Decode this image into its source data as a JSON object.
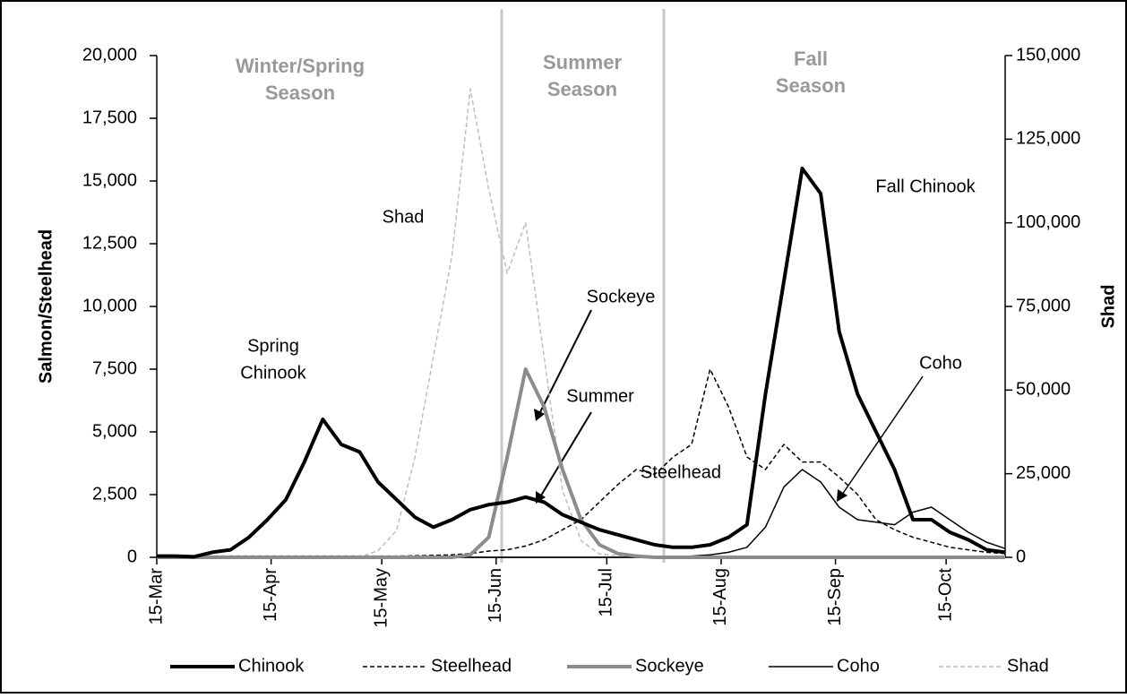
{
  "chart_data": {
    "type": "line",
    "x": [
      "15-Mar",
      "20-Mar",
      "25-Mar",
      "30-Mar",
      "4-Apr",
      "9-Apr",
      "14-Apr",
      "19-Apr",
      "24-Apr",
      "29-Apr",
      "4-May",
      "9-May",
      "14-May",
      "19-May",
      "24-May",
      "29-May",
      "3-Jun",
      "8-Jun",
      "13-Jun",
      "18-Jun",
      "23-Jun",
      "28-Jun",
      "3-Jul",
      "8-Jul",
      "13-Jul",
      "18-Jul",
      "23-Jul",
      "28-Jul",
      "2-Aug",
      "7-Aug",
      "12-Aug",
      "17-Aug",
      "22-Aug",
      "27-Aug",
      "1-Sep",
      "6-Sep",
      "11-Sep",
      "16-Sep",
      "21-Sep",
      "26-Sep",
      "1-Oct",
      "6-Oct",
      "11-Oct",
      "16-Oct",
      "21-Oct",
      "26-Oct",
      "31-Oct"
    ],
    "xlim": [
      "15-Mar",
      "31-Oct"
    ],
    "xticks": [
      "15-Mar",
      "15-Apr",
      "15-May",
      "15-Jun",
      "15-Jul",
      "15-Aug",
      "15-Sep",
      "15-Oct"
    ],
    "ylabel": "Salmon/Steelhead",
    "y2label": "Shad",
    "ylim": [
      0,
      20000
    ],
    "yticks": [
      0,
      {
        "value": 2500,
        "label": "2,500"
      },
      {
        "value": 5000,
        "label": "5,000"
      },
      {
        "value": 7500,
        "label": "7,500"
      },
      {
        "value": 10000,
        "label": "10,000"
      },
      {
        "value": 12500,
        "label": "12,500"
      },
      {
        "value": 15000,
        "label": "15,000"
      },
      {
        "value": 17500,
        "label": "17,500"
      },
      {
        "value": 20000,
        "label": "20,000"
      }
    ],
    "y2lim": [
      0,
      150000
    ],
    "y2ticks": [
      0,
      {
        "value": 25000,
        "label": "25,000"
      },
      {
        "value": 50000,
        "label": "50,000"
      },
      {
        "value": 75000,
        "label": "75,000"
      },
      {
        "value": 100000,
        "label": "100,000"
      },
      {
        "value": 125000,
        "label": "125,000"
      },
      {
        "value": 150000,
        "label": "150,000"
      }
    ],
    "season_labels": [
      [
        "Winter/Spring",
        "Season"
      ],
      [
        "Summer",
        "Season"
      ],
      [
        "Fall",
        "Season"
      ]
    ],
    "annotations": [
      "Shad",
      "Spring",
      "Chinook",
      "Sockeye",
      "Summer",
      "Steelhead",
      "Fall Chinook",
      "Coho"
    ],
    "legend": "bottom",
    "series": [
      {
        "name": "Chinook",
        "color": "#000000",
        "width": 4,
        "dashed": false,
        "values": [
          50,
          50,
          20,
          200,
          300,
          800,
          1500,
          2300,
          3800,
          5500,
          4500,
          4200,
          3000,
          2300,
          1600,
          1200,
          1500,
          1900,
          2100,
          2200,
          2400,
          2200,
          1700,
          1400,
          1100,
          900,
          700,
          500,
          400,
          400,
          500,
          800,
          1300,
          6500,
          11000,
          15500,
          14500,
          9000,
          6500,
          5000,
          3500,
          1500,
          1500,
          1000,
          700,
          300,
          200
        ]
      },
      {
        "name": "Steelhead",
        "color": "#000000",
        "width": 1.5,
        "dashed": true,
        "values": [
          50,
          50,
          50,
          50,
          50,
          50,
          50,
          50,
          50,
          50,
          50,
          50,
          50,
          50,
          60,
          80,
          100,
          150,
          250,
          300,
          450,
          700,
          1100,
          1500,
          2200,
          2900,
          3500,
          3300,
          4000,
          4500,
          7500,
          6000,
          4000,
          3500,
          4500,
          3800,
          3800,
          3200,
          2500,
          1500,
          1100,
          800,
          600,
          400,
          300,
          200,
          150
        ]
      },
      {
        "name": "Sockeye",
        "color": "#8c8c8c",
        "width": 4,
        "dashed": false,
        "values": [
          0,
          0,
          0,
          0,
          0,
          0,
          0,
          0,
          0,
          0,
          0,
          0,
          0,
          0,
          0,
          0,
          0,
          100,
          800,
          4000,
          7500,
          6000,
          3500,
          1500,
          500,
          150,
          50,
          0,
          0,
          0,
          0,
          0,
          0,
          0,
          0,
          0,
          0,
          0,
          0,
          0,
          0,
          0,
          0,
          0,
          0,
          0,
          0
        ]
      },
      {
        "name": "Coho",
        "color": "#000000",
        "width": 1.5,
        "dashed": false,
        "values": [
          0,
          0,
          0,
          0,
          0,
          0,
          0,
          0,
          0,
          0,
          0,
          0,
          0,
          0,
          0,
          0,
          0,
          0,
          0,
          0,
          0,
          0,
          0,
          0,
          0,
          0,
          0,
          0,
          0,
          50,
          100,
          200,
          400,
          1200,
          2800,
          3500,
          3000,
          2000,
          1500,
          1400,
          1300,
          1800,
          2000,
          1500,
          1000,
          600,
          350
        ]
      },
      {
        "name": "Shad",
        "color": "#bdbdbd",
        "width": 1.5,
        "dashed": true,
        "axis": "y2",
        "values": [
          0,
          0,
          0,
          0,
          0,
          0,
          0,
          0,
          0,
          0,
          0,
          0,
          2000,
          8000,
          30000,
          60000,
          90000,
          140000,
          110000,
          85000,
          100000,
          60000,
          20000,
          5000,
          1000,
          500,
          0,
          0,
          0,
          0,
          0,
          0,
          0,
          0,
          0,
          0,
          0,
          0,
          0,
          0,
          0,
          0,
          0,
          0,
          0,
          0,
          0
        ]
      }
    ]
  }
}
